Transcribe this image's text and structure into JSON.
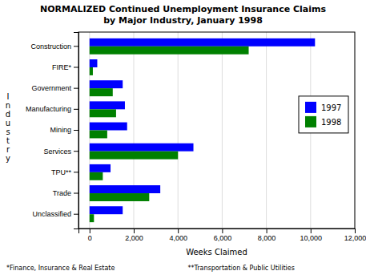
{
  "chart_data": {
    "type": "bar",
    "orientation": "horizontal",
    "title": "NORMALIZED Continued Unemployment Insurance Claims",
    "subtitle": "by Major Industry, January 1998",
    "xlabel": "Weeks Claimed",
    "ylabel": "Industry",
    "categories": [
      "Unclassified",
      "Trade",
      "TPU**",
      "Services",
      "Mining",
      "Manufacturing",
      "Government",
      "FIRE*",
      "Construction"
    ],
    "series": [
      {
        "name": "1997",
        "color": "#0000FF",
        "values": [
          1500,
          3200,
          950,
          4700,
          1700,
          1600,
          1500,
          350,
          10200
        ]
      },
      {
        "name": "1998",
        "color": "#008000",
        "values": [
          200,
          2700,
          600,
          4000,
          800,
          1200,
          1050,
          150,
          7200
        ]
      }
    ],
    "xlim": [
      -500,
      12000
    ],
    "xticks": [
      0,
      {
        "value": 2000,
        "label": "2,000"
      },
      {
        "value": 4000,
        "label": "4,000"
      },
      {
        "value": 6000,
        "label": "6,000"
      },
      {
        "value": 8000,
        "label": "8,000"
      },
      {
        "value": 10000,
        "label": "10,000"
      },
      {
        "value": 12000,
        "label": "12,000"
      }
    ],
    "grid": true,
    "legend": "right",
    "annotations": [
      "*Finance, Insurance & Real Estate",
      "**Transportation & Public Utilities"
    ]
  }
}
